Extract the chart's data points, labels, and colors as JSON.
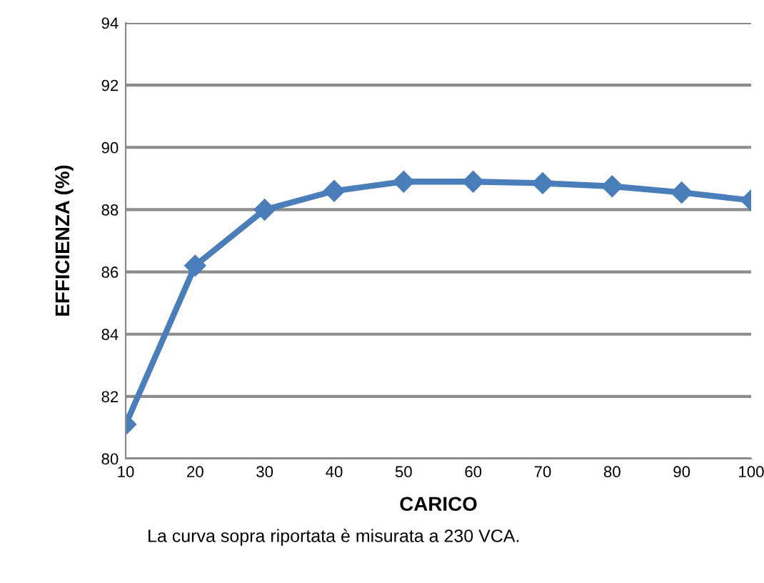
{
  "chart_data": {
    "type": "line",
    "xlabel": "CARICO",
    "ylabel": "EFFICIENZA (%)",
    "x": [
      10,
      20,
      30,
      40,
      50,
      60,
      70,
      80,
      90,
      100
    ],
    "series": [
      {
        "color": "#4a7ebb",
        "values": [
          81.1,
          86.2,
          88.0,
          88.6,
          88.9,
          88.9,
          88.85,
          88.75,
          88.55,
          88.3
        ]
      }
    ],
    "xlim": [
      10,
      100
    ],
    "xticks": [
      10,
      20,
      30,
      40,
      50,
      60,
      70,
      80,
      90,
      100
    ],
    "ylim": [
      80,
      94
    ],
    "yticks": [
      80,
      82,
      84,
      86,
      88,
      90,
      92,
      94
    ],
    "grid": "y",
    "marker": "diamond",
    "line_style": "solid",
    "annotations": [
      "La curva sopra riportata è misurata a 230 VCA."
    ]
  }
}
